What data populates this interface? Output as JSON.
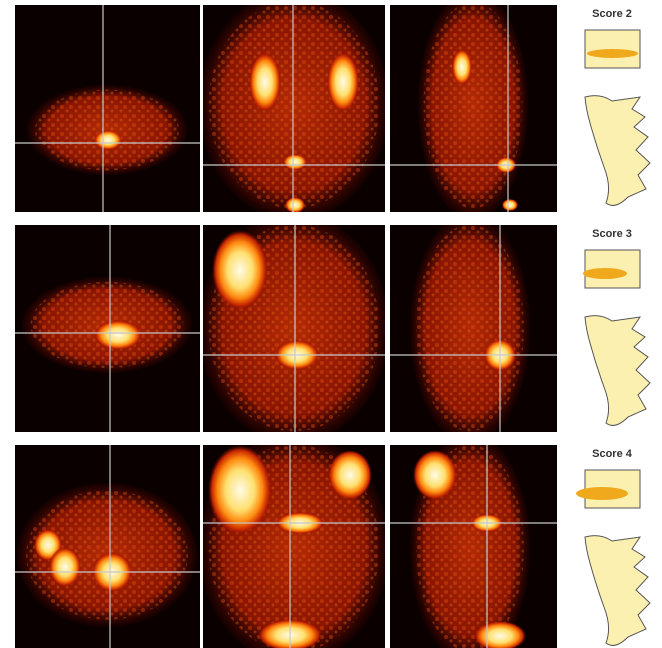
{
  "rows": [
    {
      "score_label": "Score 2"
    },
    {
      "score_label": "Score 3"
    },
    {
      "score_label": "Score 4"
    }
  ]
}
